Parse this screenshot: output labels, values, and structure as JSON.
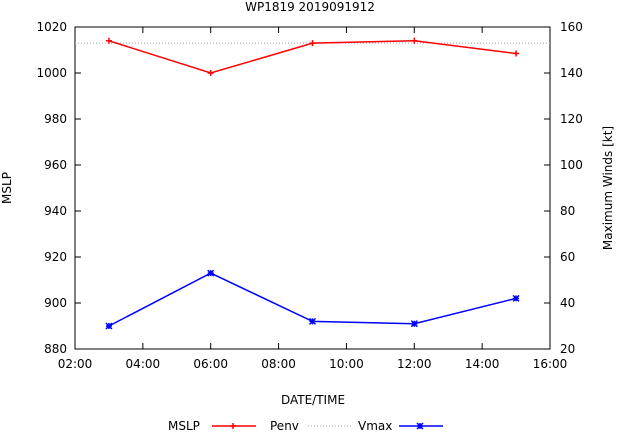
{
  "chart_data": {
    "type": "line",
    "title": "WP1819 2019091912",
    "xlabel": "DATE/TIME",
    "ylabel_left": "MSLP",
    "ylabel_right": "Maximum Winds [kt]",
    "x_ticks": [
      "02:00",
      "04:00",
      "06:00",
      "08:00",
      "10:00",
      "12:00",
      "14:00",
      "16:00"
    ],
    "x_range_hours": [
      2,
      16
    ],
    "y_left_range": [
      880,
      1020
    ],
    "y_left_ticks": [
      "880",
      "900",
      "920",
      "940",
      "960",
      "980",
      "1000",
      "1020"
    ],
    "y_right_range": [
      20,
      160
    ],
    "y_right_ticks": [
      "20",
      "40",
      "60",
      "80",
      "100",
      "120",
      "140",
      "160"
    ],
    "legend_title": "MSLP",
    "series": [
      {
        "name": "Penv",
        "axis": "left",
        "style": "dotted",
        "color": "#a0a0a0",
        "x": [
          2,
          16
        ],
        "values": [
          1013,
          1013
        ]
      },
      {
        "name": "MSLP",
        "axis": "left",
        "style": "solid-plus",
        "color": "#ff0000",
        "x": [
          3,
          6,
          9,
          12,
          15
        ],
        "values": [
          1014,
          1000,
          1013,
          1014,
          1008.5
        ]
      },
      {
        "name": "Vmax",
        "axis": "right",
        "style": "solid-star",
        "color": "#0000ff",
        "x": [
          3,
          6,
          9,
          12,
          15
        ],
        "values": [
          30,
          53,
          32,
          31,
          42
        ]
      }
    ]
  }
}
